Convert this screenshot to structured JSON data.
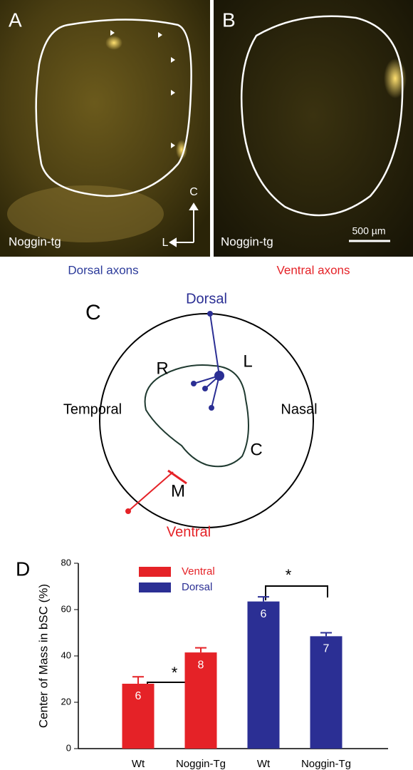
{
  "panel_a": {
    "letter": "A",
    "label": "Noggin-tg",
    "axis_c": "C",
    "axis_l": "L",
    "caption": "Dorsal axons"
  },
  "panel_b": {
    "letter": "B",
    "label": "Noggin-tg",
    "scale_bar": "500 µm",
    "caption": "Ventral axons"
  },
  "panel_c": {
    "letter": "C",
    "dorsal": "Dorsal",
    "ventral": "Ventral",
    "temporal": "Temporal",
    "nasal": "Nasal",
    "r": "R",
    "l": "L",
    "c": "C",
    "m": "M"
  },
  "chart_data": {
    "type": "bar",
    "letter": "D",
    "y_label": "Center of Mass in bSC (%)",
    "categories": [
      "Wt",
      "Noggin-Tg",
      "Wt",
      "Noggin-Tg"
    ],
    "series": [
      {
        "name": "Ventral",
        "color": "#e52227",
        "values": [
          28,
          41.5,
          null,
          null
        ],
        "errors": [
          3,
          2,
          null,
          null
        ],
        "n": [
          6,
          8,
          null,
          null
        ]
      },
      {
        "name": "Dorsal",
        "color": "#2b2f94",
        "values": [
          null,
          null,
          63.5,
          48.5
        ],
        "errors": [
          null,
          null,
          2,
          1.5
        ],
        "n": [
          null,
          null,
          6,
          7
        ]
      }
    ],
    "annotations": [
      "*",
      "*"
    ],
    "ylim": [
      0,
      80
    ],
    "yticks": [
      0,
      20,
      40,
      60,
      80
    ],
    "legend": "top-left"
  }
}
